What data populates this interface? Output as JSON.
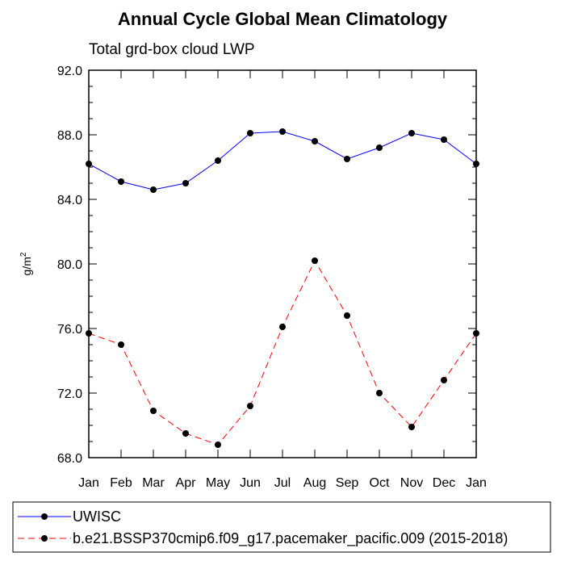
{
  "chart_data": {
    "type": "line",
    "title": "Annual Cycle Global Mean Climatology",
    "subtitle": "Total grd-box cloud LWP",
    "ylabel_base": "g/m",
    "ylabel_sup": "2",
    "xlabel": "",
    "categories": [
      "Jan",
      "Feb",
      "Mar",
      "Apr",
      "May",
      "Jun",
      "Jul",
      "Aug",
      "Sep",
      "Oct",
      "Nov",
      "Dec",
      "Jan"
    ],
    "ylim": [
      68.0,
      92.0
    ],
    "yticks": [
      "68.0",
      "72.0",
      "76.0",
      "80.0",
      "84.0",
      "88.0",
      "92.0"
    ],
    "grid": false,
    "legend_position": "bottom",
    "series": [
      {
        "name": "UWISC",
        "color": "#0000ff",
        "dash": "solid",
        "values": [
          86.2,
          85.1,
          84.6,
          85.0,
          86.4,
          88.1,
          88.2,
          87.6,
          86.5,
          87.2,
          88.1,
          87.7,
          86.2
        ]
      },
      {
        "name": "b.e21.BSSP370cmip6.f09_g17.pacemaker_pacific.009 (2015-2018)",
        "color": "#ff0000",
        "dash": "dashed",
        "values": [
          75.7,
          75.0,
          70.9,
          69.5,
          68.8,
          71.2,
          76.1,
          80.2,
          76.8,
          72.0,
          69.9,
          72.8,
          75.7
        ]
      }
    ]
  }
}
